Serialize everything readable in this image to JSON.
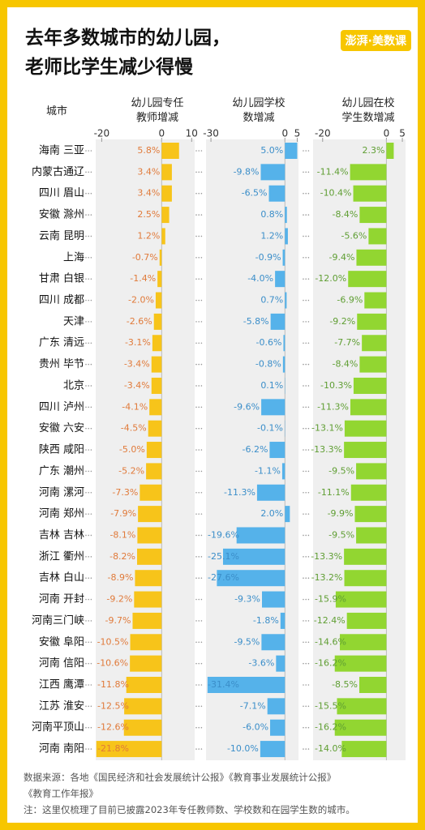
{
  "chart_data": {
    "type": "bar",
    "orientation": "horizontal",
    "title": "去年多数城市的幼儿园，\n老师比学生减少得慢",
    "logo": "澎湃·美数课",
    "category_label": "城市",
    "categories": [
      "海南 三亚",
      "内蒙古通辽",
      "四川 眉山",
      "安徽 滁州",
      "云南 昆明",
      "上海",
      "甘肃 白银",
      "四川 成都",
      "天津",
      "广东 清远",
      "贵州 毕节",
      "北京",
      "四川 泸州",
      "安徽 六安",
      "陕西 咸阳",
      "广东 潮州",
      "河南 漯河",
      "河南 郑州",
      "吉林 吉林",
      "浙江 衢州",
      "吉林 白山",
      "河南 开封",
      "河南三门峡",
      "安徽 阜阳",
      "河南 信阳",
      "江西 鹰潭",
      "江苏 淮安",
      "河南平顶山",
      "河南 南阳"
    ],
    "series": [
      {
        "name": "幼儿园专任\n教师增减",
        "color": "#f7c41a",
        "label_color": "#e07a3a",
        "xlim": [
          -22,
          11
        ],
        "xticks": [
          -20,
          0,
          10
        ],
        "values": [
          5.8,
          3.4,
          3.4,
          2.5,
          1.2,
          -0.7,
          -1.4,
          -2.0,
          -2.6,
          -3.1,
          -3.4,
          -3.4,
          -4.1,
          -4.5,
          -5.0,
          -5.2,
          -7.3,
          -7.9,
          -8.1,
          -8.2,
          -8.9,
          -9.2,
          -9.7,
          -10.5,
          -10.6,
          -11.8,
          -12.5,
          -12.6,
          -21.8
        ],
        "value_labels": [
          "5.8%",
          "3.4%",
          "3.4%",
          "2.5%",
          "1.2%",
          "-0.7%",
          "-1.4%",
          "-2.0%",
          "-2.6%",
          "-3.1%",
          "-3.4%",
          "-3.4%",
          "-4.1%",
          "-4.5%",
          "-5.0%",
          "-5.2%",
          "-7.3%",
          "-7.9%",
          "-8.1%",
          "-8.2%",
          "-8.9%",
          "-9.2%",
          "-9.7%",
          "-10.5%",
          "-10.6%",
          "-11.8%",
          "-12.5%",
          "-12.6%",
          "-21.8%"
        ]
      },
      {
        "name": "幼儿园学校\n数增减",
        "color": "#55b2ea",
        "label_color": "#3b8ec9",
        "xlim": [
          -32,
          5.5
        ],
        "xticks": [
          -30,
          0,
          5
        ],
        "values": [
          5.0,
          -9.8,
          -6.5,
          0.8,
          1.2,
          -0.9,
          -4.0,
          0.7,
          -5.8,
          -0.6,
          -0.8,
          0.1,
          -9.6,
          -0.1,
          -6.2,
          -1.1,
          -11.3,
          2.0,
          -19.6,
          -25.1,
          -27.6,
          -9.3,
          -1.8,
          -9.5,
          -3.6,
          -31.4,
          -7.1,
          -6.0,
          -10.0
        ],
        "value_labels": [
          "5.0%",
          "-9.8%",
          "-6.5%",
          "0.8%",
          "1.2%",
          "-0.9%",
          "-4.0%",
          "0.7%",
          "-5.8%",
          "-0.6%",
          "-0.8%",
          "0.1%",
          "-9.6%",
          "-0.1%",
          "-6.2%",
          "-1.1%",
          "-11.3%",
          "2.0%",
          "-19.6%",
          "-25.1%",
          "-27.6%",
          "-9.3%",
          "-1.8%",
          "-9.5%",
          "-3.6%",
          "-31.4%",
          "-7.1%",
          "-6.0%",
          "-10.0%"
        ]
      },
      {
        "name": "幼儿园在校\n学生数增减",
        "color": "#92d631",
        "label_color": "#5f9e33",
        "xlim": [
          -23,
          6
        ],
        "xticks": [
          -20,
          0,
          5
        ],
        "values": [
          2.3,
          -11.4,
          -10.4,
          -8.4,
          -5.6,
          -9.4,
          -12.0,
          -6.9,
          -9.2,
          -7.7,
          -8.4,
          -10.3,
          -11.3,
          -13.1,
          -13.3,
          -9.5,
          -11.1,
          -9.9,
          -9.5,
          -13.3,
          -13.2,
          -15.9,
          -12.4,
          -14.6,
          -16.2,
          -8.5,
          -15.5,
          -16.2,
          -14.0
        ],
        "value_labels": [
          "2.3%",
          "-11.4%",
          "-10.4%",
          "-8.4%",
          "-5.6%",
          "-9.4%",
          "-12.0%",
          "-6.9%",
          "-9.2%",
          "-7.7%",
          "-8.4%",
          "-10.3%",
          "-11.3%",
          "-13.1%",
          "-13.3%",
          "-9.5%",
          "-11.1%",
          "-9.9%",
          "-9.5%",
          "-13.3%",
          "-13.2%",
          "-15.9%",
          "-12.4%",
          "-14.6%",
          "-16.2%",
          "-8.5%",
          "-15.5%",
          "-16.2%",
          "-14.0%"
        ]
      }
    ],
    "source": "数据来源：各地《国民经济和社会发展统计公报》《教育事业发展统计公报》\n《教育工作年报》",
    "note": "注：这里仅梳理了目前已披露2023年专任教师数、学校数和在园学生数的城市。"
  }
}
